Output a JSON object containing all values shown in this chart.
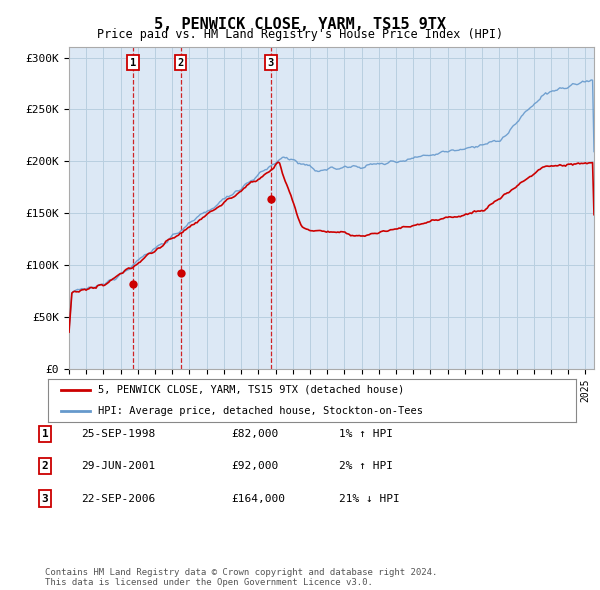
{
  "title": "5, PENWICK CLOSE, YARM, TS15 9TX",
  "subtitle": "Price paid vs. HM Land Registry's House Price Index (HPI)",
  "ylim": [
    0,
    310000
  ],
  "yticks": [
    0,
    50000,
    100000,
    150000,
    200000,
    250000,
    300000
  ],
  "ytick_labels": [
    "£0",
    "£50K",
    "£100K",
    "£150K",
    "£200K",
    "£250K",
    "£300K"
  ],
  "background_color": "#f0f4f8",
  "plot_bg_color": "#dce8f5",
  "grid_color": "#b8cfe0",
  "red_line_color": "#cc0000",
  "blue_line_color": "#6699cc",
  "sale_marker_color": "#cc0000",
  "sales": [
    {
      "num": 1,
      "year": 1998.73,
      "price": 82000,
      "label": "1"
    },
    {
      "num": 2,
      "year": 2001.49,
      "price": 92000,
      "label": "2"
    },
    {
      "num": 3,
      "year": 2006.73,
      "price": 164000,
      "label": "3"
    }
  ],
  "legend_red_label": "5, PENWICK CLOSE, YARM, TS15 9TX (detached house)",
  "legend_blue_label": "HPI: Average price, detached house, Stockton-on-Tees",
  "footnote": "Contains HM Land Registry data © Crown copyright and database right 2024.\nThis data is licensed under the Open Government Licence v3.0.",
  "table_rows": [
    {
      "num": "1",
      "date": "25-SEP-1998",
      "price": "£82,000",
      "hpi": "1% ↑ HPI"
    },
    {
      "num": "2",
      "date": "29-JUN-2001",
      "price": "£92,000",
      "hpi": "2% ↑ HPI"
    },
    {
      "num": "3",
      "date": "22-SEP-2006",
      "price": "£164,000",
      "hpi": "21% ↓ HPI"
    }
  ]
}
